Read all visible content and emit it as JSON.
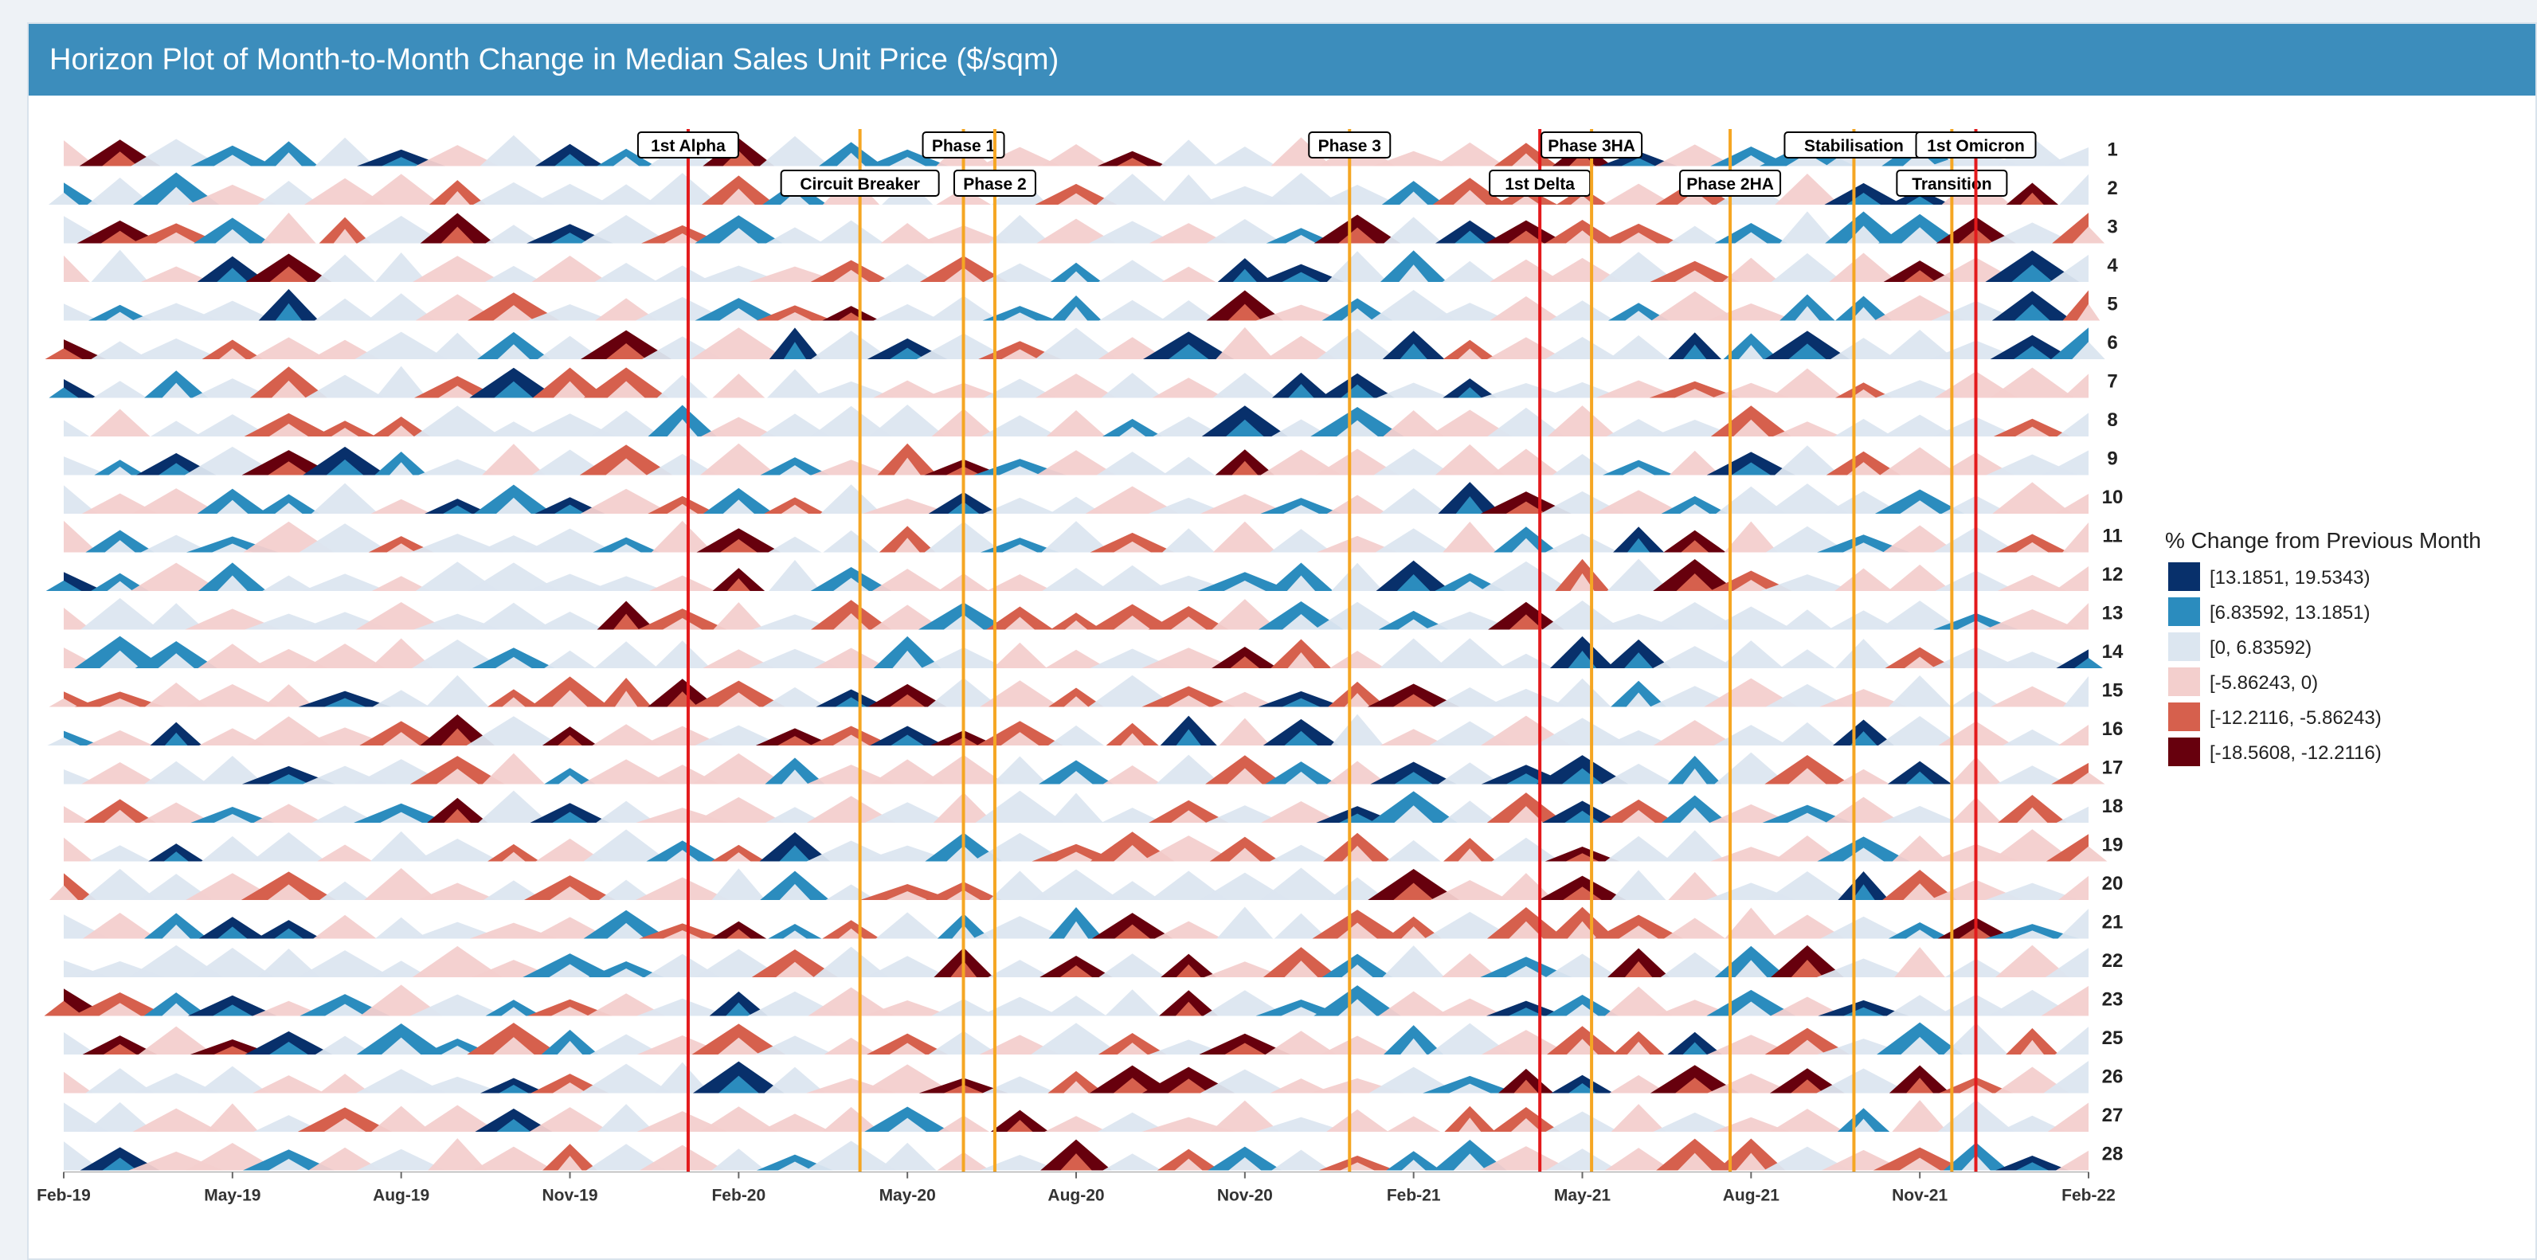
{
  "page": {
    "title": "Horizon Plot of Month-to-Month Change in Median Sales Unit Price ($/sqm)"
  },
  "chart_data": {
    "type": "horizon",
    "title": "Horizon Plot of Month-to-Month Change in Median Sales Unit Price ($/sqm)",
    "x_ticks": [
      "Feb-19",
      "May-19",
      "Aug-19",
      "Nov-19",
      "Feb-20",
      "May-20",
      "Aug-20",
      "Nov-20",
      "Feb-21",
      "May-21",
      "Aug-21",
      "Nov-21",
      "Feb-22"
    ],
    "x_range": [
      "2019-02",
      "2022-02"
    ],
    "rows": [
      "1",
      "2",
      "3",
      "4",
      "5",
      "6",
      "7",
      "8",
      "9",
      "10",
      "11",
      "12",
      "13",
      "14",
      "15",
      "16",
      "17",
      "18",
      "19",
      "20",
      "21",
      "22",
      "23",
      "25",
      "26",
      "27",
      "28"
    ],
    "legend": {
      "title": "% Change from Previous Month",
      "placement": "right",
      "bands": [
        {
          "label": "[13.1851, 19.5343)",
          "color": "#08306b"
        },
        {
          "label": "[6.83592, 13.1851)",
          "color": "#2b8cbe"
        },
        {
          "label": "[0, 6.83592)",
          "color": "#dce6f0"
        },
        {
          "label": "[-5.86243, 0)",
          "color": "#f3cfcd"
        },
        {
          "label": "[-12.2116, -5.86243)",
          "color": "#d6604d"
        },
        {
          "label": "[-18.5608, -12.2116)",
          "color": "#67000d"
        }
      ]
    },
    "events": [
      {
        "label": "1st Alpha",
        "date": "2020-01-05",
        "color": "#e31a1c",
        "tier": 1
      },
      {
        "label": "Circuit Breaker",
        "date": "2020-04-07",
        "color": "#f5a623",
        "tier": 2
      },
      {
        "label": "Phase 1",
        "date": "2020-06-02",
        "color": "#f5a623",
        "tier": 1
      },
      {
        "label": "Phase 2",
        "date": "2020-06-19",
        "color": "#f5a623",
        "tier": 2
      },
      {
        "label": "Phase 3",
        "date": "2020-12-28",
        "color": "#f5a623",
        "tier": 1
      },
      {
        "label": "1st Delta",
        "date": "2021-04-10",
        "color": "#e31a1c",
        "tier": 2
      },
      {
        "label": "Phase 3HA",
        "date": "2021-05-08",
        "color": "#f5a623",
        "tier": 1
      },
      {
        "label": "Phase 2HA",
        "date": "2021-07-22",
        "color": "#f5a623",
        "tier": 2
      },
      {
        "label": "Stabilisation",
        "date": "2021-09-27",
        "color": "#f5a623",
        "tier": 1
      },
      {
        "label": "Transition",
        "date": "2021-11-19",
        "color": "#f5a623",
        "tier": 2
      },
      {
        "label": "1st Omicron",
        "date": "2021-12-02",
        "color": "#e31a1c",
        "tier": 1
      }
    ]
  }
}
